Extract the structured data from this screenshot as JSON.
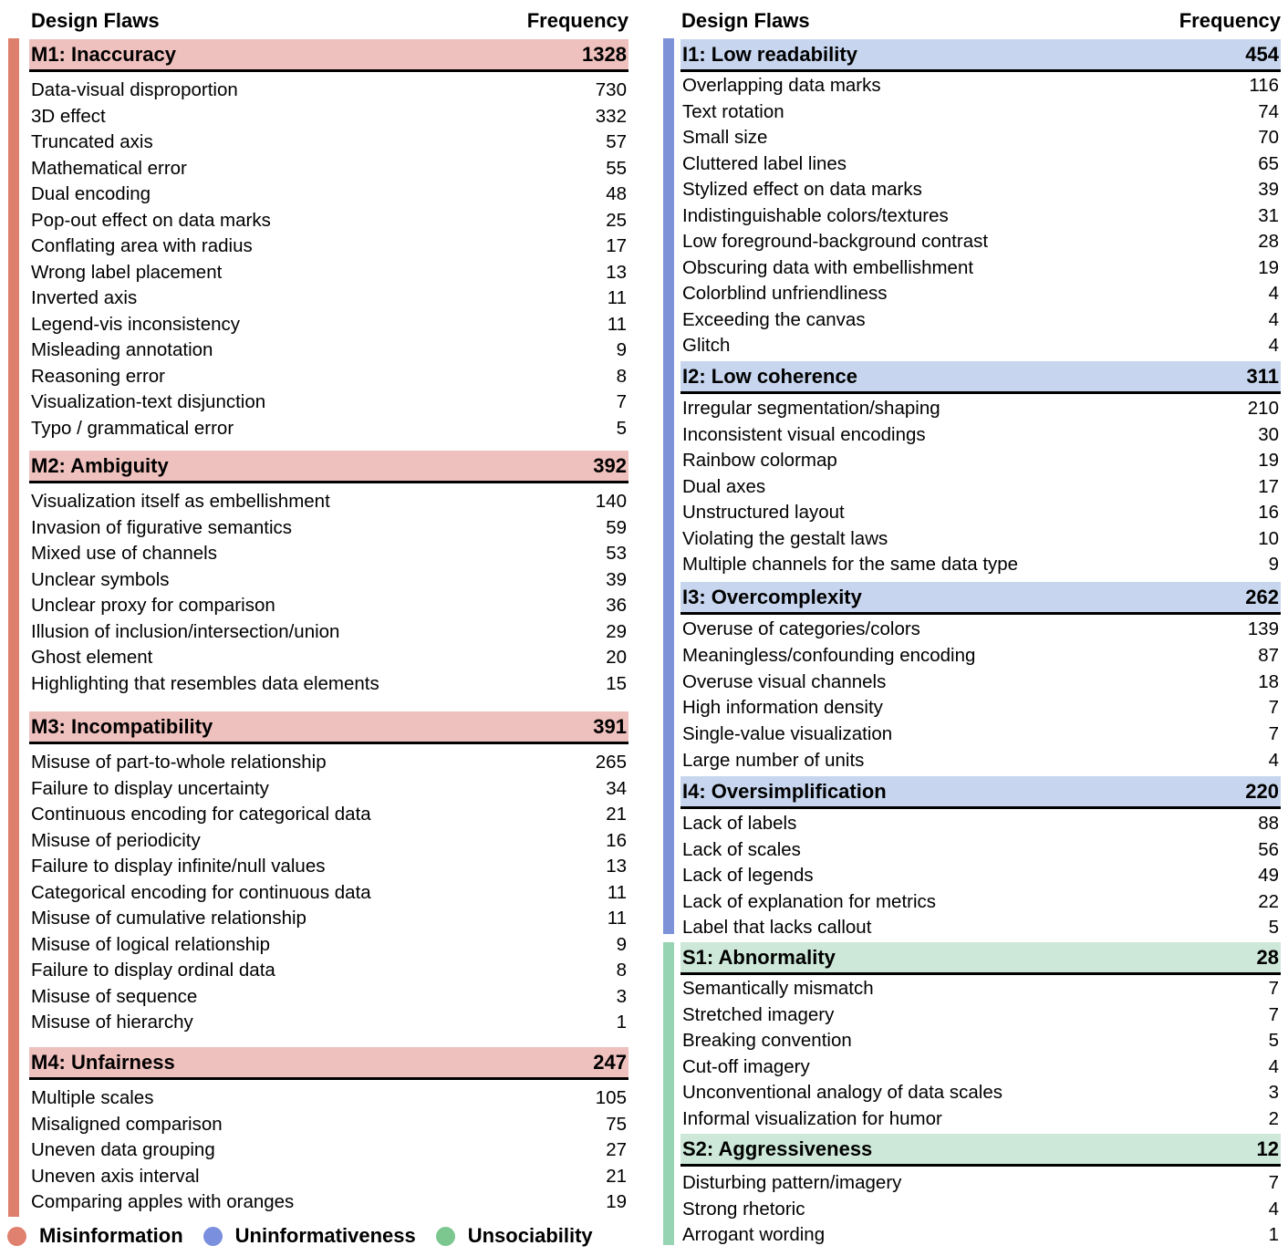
{
  "header": {
    "left": {
      "flaws": "Design Flaws",
      "frequency": "Frequency"
    },
    "right": {
      "flaws": "Design Flaws",
      "frequency": "Frequency"
    }
  },
  "colors": {
    "misinformation_bar": "#DE7F6E",
    "misinformation_fill": "#EFC1BE",
    "uninformativeness_bar": "#7E92D8",
    "uninformativeness_fill": "#C7D6EE",
    "unsociability_bar": "#97D4B3",
    "unsociability_fill": "#CDE8D9"
  },
  "legend": [
    {
      "label": "Misinformation",
      "color": "#E0806F"
    },
    {
      "label": "Uninformativeness",
      "color": "#7A8FDD"
    },
    {
      "label": "Unsociability",
      "color": "#7CC78F"
    }
  ],
  "groups": {
    "M1": {
      "title": "M1: Inaccuracy",
      "total": "1328",
      "items": [
        {
          "name": "Data-visual disproportion",
          "value": "730"
        },
        {
          "name": "3D effect",
          "value": "332"
        },
        {
          "name": "Truncated axis",
          "value": "57"
        },
        {
          "name": "Mathematical error",
          "value": "55"
        },
        {
          "name": "Dual encoding",
          "value": "48"
        },
        {
          "name": "Pop-out effect on data marks",
          "value": "25"
        },
        {
          "name": "Conflating area with radius",
          "value": "17"
        },
        {
          "name": "Wrong label placement",
          "value": "13"
        },
        {
          "name": "Inverted axis",
          "value": "11"
        },
        {
          "name": "Legend-vis inconsistency",
          "value": "11"
        },
        {
          "name": "Misleading annotation",
          "value": "9"
        },
        {
          "name": "Reasoning error",
          "value": "8"
        },
        {
          "name": "Visualization-text disjunction",
          "value": "7"
        },
        {
          "name": "Typo / grammatical error",
          "value": "5"
        }
      ]
    },
    "M2": {
      "title": "M2: Ambiguity",
      "total": "392",
      "items": [
        {
          "name": "Visualization itself as embellishment",
          "value": "140"
        },
        {
          "name": "Invasion of figurative semantics",
          "value": "59"
        },
        {
          "name": "Mixed use of channels",
          "value": "53"
        },
        {
          "name": "Unclear symbols",
          "value": "39"
        },
        {
          "name": "Unclear proxy for comparison",
          "value": "36"
        },
        {
          "name": "Illusion of inclusion/intersection/union",
          "value": "29"
        },
        {
          "name": "Ghost element",
          "value": "20"
        },
        {
          "name": "Highlighting that resembles data elements",
          "value": "15"
        }
      ]
    },
    "M3": {
      "title": "M3: Incompatibility",
      "total": "391",
      "items": [
        {
          "name": "Misuse of part-to-whole relationship",
          "value": "265"
        },
        {
          "name": "Failure to display uncertainty",
          "value": "34"
        },
        {
          "name": "Continuous encoding for categorical data",
          "value": "21"
        },
        {
          "name": "Misuse of periodicity",
          "value": "16"
        },
        {
          "name": "Failure to display infinite/null values",
          "value": "13"
        },
        {
          "name": "Categorical encoding for continuous data",
          "value": "11"
        },
        {
          "name": "Misuse of cumulative relationship",
          "value": "11"
        },
        {
          "name": "Misuse of logical relationship",
          "value": "9"
        },
        {
          "name": "Failure to display ordinal data",
          "value": "8"
        },
        {
          "name": "Misuse of sequence",
          "value": "3"
        },
        {
          "name": "Misuse of hierarchy",
          "value": "1"
        }
      ]
    },
    "M4": {
      "title": "M4: Unfairness",
      "total": "247",
      "items": [
        {
          "name": "Multiple scales",
          "value": "105"
        },
        {
          "name": "Misaligned comparison",
          "value": "75"
        },
        {
          "name": "Uneven data grouping",
          "value": "27"
        },
        {
          "name": "Uneven axis interval",
          "value": "21"
        },
        {
          "name": "Comparing apples with oranges",
          "value": "19"
        }
      ]
    },
    "I1": {
      "title": "I1: Low readability",
      "total": "454",
      "items": [
        {
          "name": "Overlapping data marks",
          "value": "116"
        },
        {
          "name": "Text rotation",
          "value": "74"
        },
        {
          "name": "Small size",
          "value": "70"
        },
        {
          "name": "Cluttered label lines",
          "value": "65"
        },
        {
          "name": "Stylized effect on data marks",
          "value": "39"
        },
        {
          "name": "Indistinguishable colors/textures",
          "value": "31"
        },
        {
          "name": "Low foreground-background contrast",
          "value": "28"
        },
        {
          "name": "Obscuring data with embellishment",
          "value": "19"
        },
        {
          "name": "Colorblind unfriendliness",
          "value": "4"
        },
        {
          "name": "Exceeding the canvas",
          "value": "4"
        },
        {
          "name": "Glitch",
          "value": "4"
        }
      ]
    },
    "I2": {
      "title": "I2: Low coherence",
      "total": "311",
      "items": [
        {
          "name": "Irregular segmentation/shaping",
          "value": "210"
        },
        {
          "name": "Inconsistent visual encodings",
          "value": "30"
        },
        {
          "name": "Rainbow colormap",
          "value": "19"
        },
        {
          "name": "Dual axes",
          "value": "17"
        },
        {
          "name": "Unstructured layout",
          "value": "16"
        },
        {
          "name": "Violating the gestalt laws",
          "value": "10"
        },
        {
          "name": "Multiple channels for the same data type",
          "value": "9"
        }
      ]
    },
    "I3": {
      "title": "I3: Overcomplexity",
      "total": "262",
      "items": [
        {
          "name": "Overuse of categories/colors",
          "value": "139"
        },
        {
          "name": "Meaningless/confounding encoding",
          "value": "87"
        },
        {
          "name": "Overuse visual channels",
          "value": "18"
        },
        {
          "name": "High information density",
          "value": "7"
        },
        {
          "name": "Single-value visualization",
          "value": "7"
        },
        {
          "name": "Large number of units",
          "value": "4"
        }
      ]
    },
    "I4": {
      "title": "I4: Oversimplification",
      "total": "220",
      "items": [
        {
          "name": "Lack of labels",
          "value": "88"
        },
        {
          "name": "Lack of scales",
          "value": "56"
        },
        {
          "name": "Lack of legends",
          "value": "49"
        },
        {
          "name": "Lack of explanation for metrics",
          "value": "22"
        },
        {
          "name": "Label that lacks callout",
          "value": "5"
        }
      ]
    },
    "S1": {
      "title": "S1: Abnormality",
      "total": "28",
      "items": [
        {
          "name": "Semantically mismatch",
          "value": "7"
        },
        {
          "name": "Stretched imagery",
          "value": "7"
        },
        {
          "name": "Breaking convention",
          "value": "5"
        },
        {
          "name": "Cut-off imagery",
          "value": "4"
        },
        {
          "name": "Unconventional analogy of data scales",
          "value": "3"
        },
        {
          "name": "Informal visualization for humor",
          "value": "2"
        }
      ]
    },
    "S2": {
      "title": "S2: Aggressiveness",
      "total": "12",
      "items": [
        {
          "name": "Disturbing pattern/imagery",
          "value": "7"
        },
        {
          "name": "Strong rhetoric",
          "value": "4"
        },
        {
          "name": "Arrogant wording",
          "value": "1"
        }
      ]
    }
  }
}
